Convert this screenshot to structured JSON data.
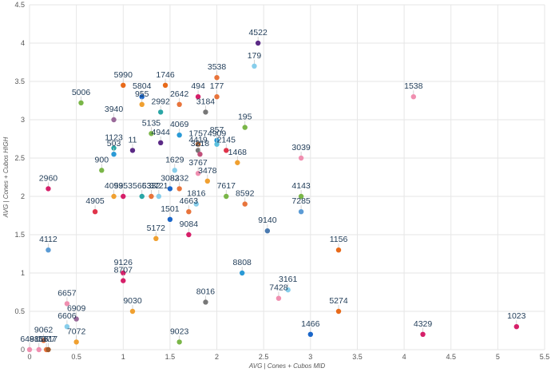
{
  "chart_data": {
    "type": "scatter",
    "title": "",
    "xlabel": "AVG | Cones + Cubos MID",
    "ylabel": "AVG | Cones + Cubos HIGH",
    "xlim": [
      0,
      5.5
    ],
    "ylim": [
      0,
      4.5
    ],
    "xticks": [
      "0",
      "0.5",
      "1",
      "1.5",
      "2",
      "2.5",
      "3",
      "3.5",
      "4",
      "4.5",
      "5",
      "5.5"
    ],
    "yticks": [
      "0",
      "0.5",
      "1",
      "1.5",
      "2",
      "2.5",
      "3",
      "3.5",
      "4",
      "4.5"
    ],
    "grid": true,
    "points": [
      {
        "label": "4522",
        "x": 2.44,
        "y": 4.0,
        "color": "#5b2a86"
      },
      {
        "label": "179",
        "x": 2.4,
        "y": 3.7,
        "color": "#87ceeb"
      },
      {
        "label": "3538",
        "x": 2.0,
        "y": 3.55,
        "color": "#e8743b"
      },
      {
        "label": "5990",
        "x": 1.0,
        "y": 3.45,
        "color": "#e86a1a"
      },
      {
        "label": "1746",
        "x": 1.45,
        "y": 3.45,
        "color": "#e86a1a"
      },
      {
        "label": "494",
        "x": 1.8,
        "y": 3.3,
        "color": "#d61f69"
      },
      {
        "label": "177",
        "x": 2.0,
        "y": 3.3,
        "color": "#e8743b"
      },
      {
        "label": "1538",
        "x": 4.1,
        "y": 3.3,
        "color": "#f08fb0"
      },
      {
        "label": "5804",
        "x": 1.2,
        "y": 3.3,
        "color": "#1a66c9"
      },
      {
        "label": "5006",
        "x": 0.55,
        "y": 3.22,
        "color": "#7ab648"
      },
      {
        "label": "955",
        "x": 1.2,
        "y": 3.2,
        "color": "#f0a030"
      },
      {
        "label": "2992",
        "x": 1.4,
        "y": 3.1,
        "color": "#2aa6a6"
      },
      {
        "label": "2642",
        "x": 1.6,
        "y": 3.2,
        "color": "#e8743b"
      },
      {
        "label": "3184",
        "x": 1.88,
        "y": 3.1,
        "color": "#777777"
      },
      {
        "label": "3940",
        "x": 0.9,
        "y": 3.0,
        "color": "#9a6a9a"
      },
      {
        "label": "195",
        "x": 2.3,
        "y": 2.9,
        "color": "#7ab648"
      },
      {
        "label": "5135",
        "x": 1.3,
        "y": 2.82,
        "color": "#7ab648"
      },
      {
        "label": "4069",
        "x": 1.6,
        "y": 2.8,
        "color": "#2a9ad6"
      },
      {
        "label": "857",
        "x": 2.0,
        "y": 2.73,
        "color": "#2a9ad6"
      },
      {
        "label": "1757",
        "x": 1.8,
        "y": 2.68,
        "color": "#a05a2c"
      },
      {
        "label": "4909",
        "x": 2.0,
        "y": 2.68,
        "color": "#5bc0de"
      },
      {
        "label": "4944",
        "x": 1.4,
        "y": 2.7,
        "color": "#5b2a86"
      },
      {
        "label": "1123",
        "x": 0.9,
        "y": 2.63,
        "color": "#2aa6a6"
      },
      {
        "label": "503",
        "x": 0.9,
        "y": 2.55,
        "color": "#2a9ad6"
      },
      {
        "label": "11",
        "x": 1.1,
        "y": 2.6,
        "color": "#5b2a86"
      },
      {
        "label": "4419",
        "x": 1.8,
        "y": 2.6,
        "color": "#777777"
      },
      {
        "label": "3218",
        "x": 1.82,
        "y": 2.55,
        "color": "#c0507a"
      },
      {
        "label": "2145",
        "x": 2.1,
        "y": 2.6,
        "color": "#e0334a"
      },
      {
        "label": "1468",
        "x": 2.22,
        "y": 2.44,
        "color": "#f0a030"
      },
      {
        "label": "3039",
        "x": 2.9,
        "y": 2.5,
        "color": "#f08fb0"
      },
      {
        "label": "900",
        "x": 0.77,
        "y": 2.34,
        "color": "#7ab648"
      },
      {
        "label": "1629",
        "x": 1.55,
        "y": 2.34,
        "color": "#87ceeb"
      },
      {
        "label": "3767",
        "x": 1.8,
        "y": 2.3,
        "color": "#f08fb0"
      },
      {
        "label": "3478",
        "x": 1.9,
        "y": 2.2,
        "color": "#f0a030"
      },
      {
        "label": "4143",
        "x": 2.9,
        "y": 2.0,
        "color": "#7ab648"
      },
      {
        "label": "4093",
        "x": 0.9,
        "y": 2.0,
        "color": "#f0a030"
      },
      {
        "label": "5953",
        "x": 1.0,
        "y": 2.0,
        "color": "#d61f69"
      },
      {
        "label": "5663",
        "x": 1.2,
        "y": 2.0,
        "color": "#2aa6a6"
      },
      {
        "label": "5332",
        "x": 1.3,
        "y": 2.0,
        "color": "#e8743b"
      },
      {
        "label": "3721",
        "x": 1.38,
        "y": 2.0,
        "color": "#87ceeb"
      },
      {
        "label": "3082",
        "x": 1.5,
        "y": 2.1,
        "color": "#1a66c9"
      },
      {
        "label": "8332",
        "x": 1.6,
        "y": 2.1,
        "color": "#e8743b"
      },
      {
        "label": "7617",
        "x": 2.1,
        "y": 2.0,
        "color": "#7ab648"
      },
      {
        "label": "1816",
        "x": 1.78,
        "y": 1.9,
        "color": "#87ceeb"
      },
      {
        "label": "8592",
        "x": 2.3,
        "y": 1.9,
        "color": "#e8743b"
      },
      {
        "label": "7285",
        "x": 2.9,
        "y": 1.8,
        "color": "#5b9bd5"
      },
      {
        "label": "2960",
        "x": 0.2,
        "y": 2.1,
        "color": "#d61f69"
      },
      {
        "label": "4905",
        "x": 0.7,
        "y": 1.8,
        "color": "#e0334a"
      },
      {
        "label": "4663",
        "x": 1.7,
        "y": 1.8,
        "color": "#e8743b"
      },
      {
        "label": "1501",
        "x": 1.5,
        "y": 1.7,
        "color": "#1a66c9"
      },
      {
        "label": "9140",
        "x": 2.54,
        "y": 1.55,
        "color": "#4a7ab0"
      },
      {
        "label": "5172",
        "x": 1.35,
        "y": 1.45,
        "color": "#f0a030"
      },
      {
        "label": "9084",
        "x": 1.7,
        "y": 1.5,
        "color": "#d61f69"
      },
      {
        "label": "1156",
        "x": 3.3,
        "y": 1.3,
        "color": "#e86a1a"
      },
      {
        "label": "4112",
        "x": 0.2,
        "y": 1.3,
        "color": "#5b9bd5"
      },
      {
        "label": "8808",
        "x": 2.27,
        "y": 1.0,
        "color": "#2a9ad6"
      },
      {
        "label": "9126",
        "x": 1.0,
        "y": 1.0,
        "color": "#d61f69"
      },
      {
        "label": "8707",
        "x": 1.0,
        "y": 0.9,
        "color": "#d61f69"
      },
      {
        "label": "3161",
        "x": 2.76,
        "y": 0.78,
        "color": "#87ceeb"
      },
      {
        "label": "7428",
        "x": 2.66,
        "y": 0.67,
        "color": "#f08fb0"
      },
      {
        "label": "8016",
        "x": 1.88,
        "y": 0.62,
        "color": "#777777"
      },
      {
        "label": "6657",
        "x": 0.4,
        "y": 0.6,
        "color": "#f08fb0"
      },
      {
        "label": "9030",
        "x": 1.1,
        "y": 0.5,
        "color": "#f0a030"
      },
      {
        "label": "5274",
        "x": 3.3,
        "y": 0.5,
        "color": "#e86a1a"
      },
      {
        "label": "6909",
        "x": 0.5,
        "y": 0.4,
        "color": "#9a6a9a"
      },
      {
        "label": "6606",
        "x": 0.4,
        "y": 0.3,
        "color": "#87ceeb"
      },
      {
        "label": "1023",
        "x": 5.2,
        "y": 0.3,
        "color": "#d61f69"
      },
      {
        "label": "4329",
        "x": 4.2,
        "y": 0.2,
        "color": "#d61f69"
      },
      {
        "label": "1466",
        "x": 3.0,
        "y": 0.2,
        "color": "#1a66c9"
      },
      {
        "label": "9023",
        "x": 1.6,
        "y": 0.1,
        "color": "#7ab648"
      },
      {
        "label": "7072",
        "x": 0.5,
        "y": 0.1,
        "color": "#f0a030"
      },
      {
        "label": "9062",
        "x": 0.15,
        "y": 0.12,
        "color": "#e8743b"
      },
      {
        "label": "6488",
        "x": 0.0,
        "y": 0.0,
        "color": "#f08fb0"
      },
      {
        "label": "9156",
        "x": 0.1,
        "y": 0.0,
        "color": "#f08fb0"
      },
      {
        "label": "1377",
        "x": 0.18,
        "y": 0.0,
        "color": "#e8743b"
      },
      {
        "label": "1317",
        "x": 0.2,
        "y": 0.0,
        "color": "#a05a2c"
      }
    ]
  }
}
